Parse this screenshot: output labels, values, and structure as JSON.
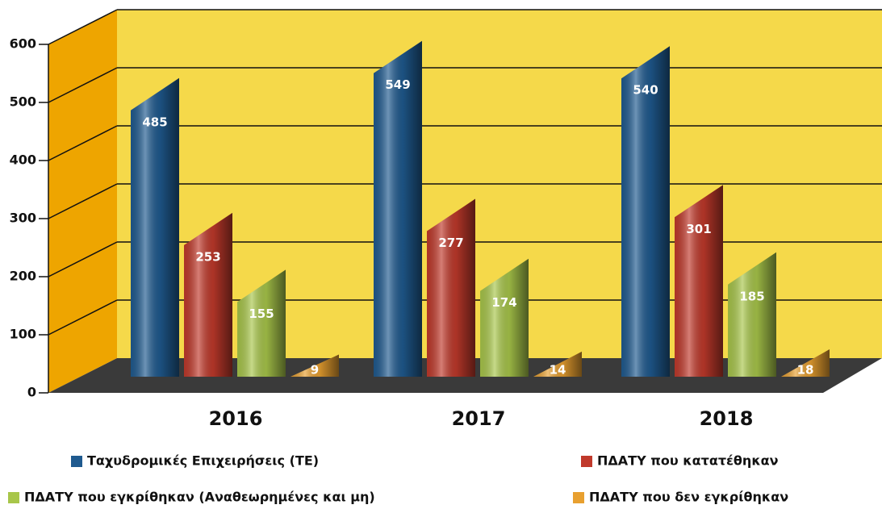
{
  "chart_data": {
    "type": "bar3d",
    "categories": [
      "2016",
      "2017",
      "2018"
    ],
    "series": [
      {
        "name": "Ταχυδρομικές Επιχειρήσεις (ΤΕ)",
        "color": "#1f5a8f",
        "values": [
          485,
          549,
          540
        ]
      },
      {
        "name": "ΠΔΑΤΥ που κατατέθηκαν",
        "color": "#c0392b",
        "values": [
          253,
          277,
          301
        ]
      },
      {
        "name": "ΠΔΑΤΥ που εγκρίθηκαν (Αναθεωρημένες και μη)",
        "color": "#a8c64a",
        "values": [
          155,
          174,
          185
        ]
      },
      {
        "name": "ΠΔΑΤΥ που δεν εγκρίθηκαν",
        "color": "#e8a030",
        "values": [
          9,
          14,
          18
        ]
      }
    ],
    "ylim": [
      0,
      600
    ],
    "yticks": [
      0,
      100,
      200,
      300,
      400,
      500,
      600
    ],
    "grid": true
  }
}
